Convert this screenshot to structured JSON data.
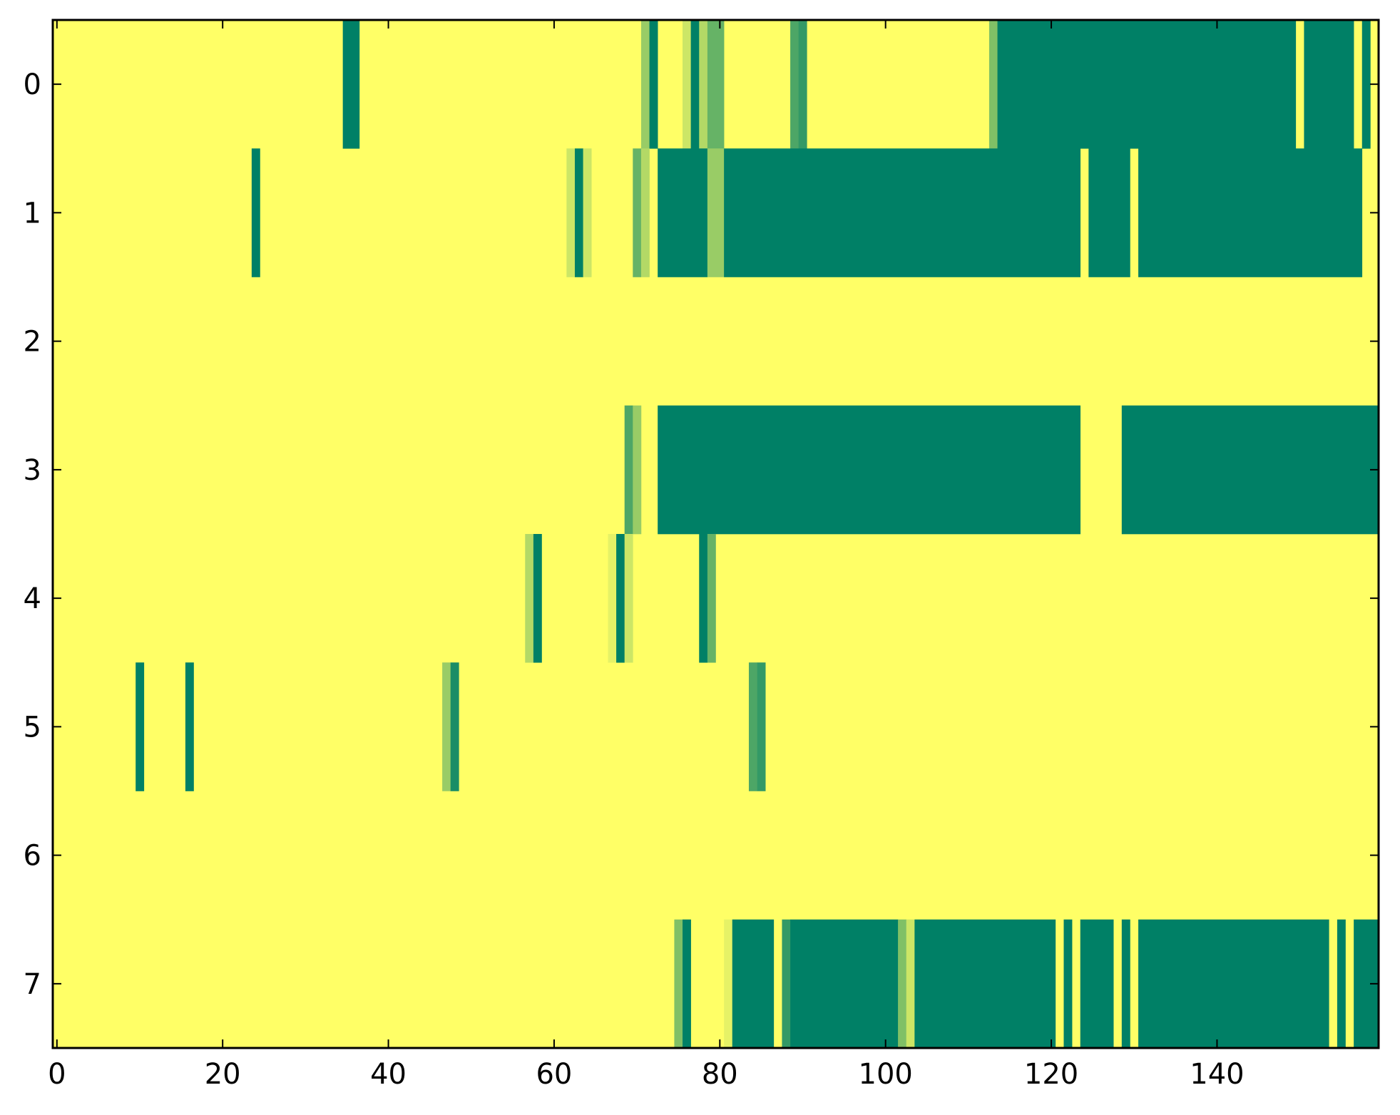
{
  "chart_data": {
    "type": "heatmap",
    "title": "",
    "xlabel": "",
    "ylabel": "",
    "n_rows": 8,
    "n_cols": 160,
    "xlim": [
      -0.5,
      159.5
    ],
    "ylim": [
      7.5,
      -0.5
    ],
    "x_ticks": [
      0,
      20,
      40,
      60,
      80,
      100,
      120,
      140
    ],
    "y_ticks": [
      0,
      1,
      2,
      3,
      4,
      5,
      6,
      7
    ],
    "x_tick_labels": [
      "0",
      "20",
      "40",
      "60",
      "80",
      "100",
      "120",
      "140"
    ],
    "y_tick_labels": [
      "0",
      "1",
      "2",
      "3",
      "4",
      "5",
      "6",
      "7"
    ],
    "colormap": "summer_r",
    "value_range": [
      0,
      1
    ],
    "color_min": "#ffff66",
    "color_max": "#008066",
    "grid": false,
    "background_value": 0,
    "runs_note": "each run is [start_col, end_col_inclusive, value]; unlisted cells = 0",
    "rows": [
      {
        "row": 0,
        "runs": [
          [
            35,
            36,
            1.0
          ],
          [
            71,
            71,
            0.4
          ],
          [
            72,
            72,
            1.0
          ],
          [
            76,
            76,
            0.2
          ],
          [
            77,
            77,
            1.0
          ],
          [
            78,
            78,
            0.3
          ],
          [
            79,
            80,
            0.6
          ],
          [
            89,
            89,
            0.7
          ],
          [
            90,
            90,
            0.8
          ],
          [
            113,
            113,
            0.5
          ],
          [
            114,
            149,
            1.0
          ],
          [
            151,
            156,
            1.0
          ],
          [
            158,
            158,
            1.0
          ]
        ]
      },
      {
        "row": 1,
        "runs": [
          [
            24,
            24,
            1.0
          ],
          [
            62,
            62,
            0.2
          ],
          [
            63,
            63,
            1.0
          ],
          [
            64,
            64,
            0.2
          ],
          [
            70,
            70,
            0.6
          ],
          [
            71,
            71,
            0.3
          ],
          [
            73,
            78,
            1.0
          ],
          [
            79,
            80,
            0.4
          ],
          [
            81,
            123,
            1.0
          ],
          [
            125,
            129,
            1.0
          ],
          [
            131,
            157,
            1.0
          ]
        ]
      },
      {
        "row": 2,
        "runs": []
      },
      {
        "row": 3,
        "runs": [
          [
            69,
            69,
            0.7
          ],
          [
            70,
            70,
            0.4
          ],
          [
            73,
            123,
            1.0
          ],
          [
            129,
            159,
            1.0
          ]
        ]
      },
      {
        "row": 4,
        "runs": [
          [
            57,
            57,
            0.3
          ],
          [
            58,
            58,
            1.0
          ],
          [
            67,
            67,
            0.1
          ],
          [
            68,
            68,
            1.0
          ],
          [
            69,
            69,
            0.2
          ],
          [
            78,
            78,
            1.0
          ],
          [
            79,
            79,
            0.6
          ]
        ]
      },
      {
        "row": 5,
        "runs": [
          [
            10,
            10,
            1.0
          ],
          [
            16,
            16,
            1.0
          ],
          [
            47,
            47,
            0.4
          ],
          [
            48,
            48,
            0.9
          ],
          [
            84,
            84,
            0.7
          ],
          [
            85,
            85,
            0.8
          ]
        ]
      },
      {
        "row": 6,
        "runs": []
      },
      {
        "row": 7,
        "runs": [
          [
            75,
            75,
            0.5
          ],
          [
            76,
            76,
            1.0
          ],
          [
            81,
            81,
            0.1
          ],
          [
            82,
            86,
            1.0
          ],
          [
            88,
            88,
            0.8
          ],
          [
            89,
            101,
            1.0
          ],
          [
            102,
            102,
            0.5
          ],
          [
            103,
            103,
            0.2
          ],
          [
            104,
            120,
            1.0
          ],
          [
            122,
            122,
            1.0
          ],
          [
            124,
            127,
            1.0
          ],
          [
            129,
            129,
            1.0
          ],
          [
            131,
            153,
            1.0
          ],
          [
            155,
            155,
            1.0
          ],
          [
            157,
            159,
            1.0
          ]
        ]
      }
    ]
  }
}
